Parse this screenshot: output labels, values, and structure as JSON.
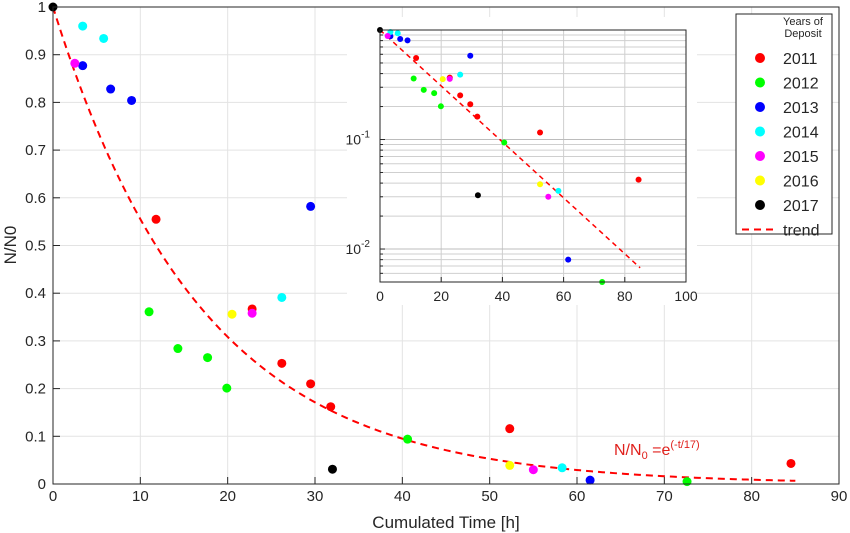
{
  "chart_data": {
    "type": "scatter",
    "xlabel": "Cumulated Time [h]",
    "ylabel": "N/N0",
    "xlim": [
      0,
      90
    ],
    "ylim": [
      0,
      1
    ],
    "x_ticks": [
      "0",
      "10",
      "20",
      "30",
      "40",
      "50",
      "60",
      "70",
      "80",
      "90"
    ],
    "y_ticks": [
      "0",
      "0.1",
      "0.2",
      "0.3",
      "0.4",
      "0.5",
      "0.6",
      "0.7",
      "0.8",
      "0.9",
      "1"
    ],
    "grid": true,
    "legend": {
      "title_line1": "Years of",
      "title_line2": "Deposit",
      "placement": "top-right"
    },
    "series": [
      {
        "name": "2011",
        "color": "#ff0000",
        "points": [
          [
            11.8,
            0.555
          ],
          [
            22.8,
            0.367
          ],
          [
            26.2,
            0.253
          ],
          [
            29.5,
            0.21
          ],
          [
            31.8,
            0.162
          ],
          [
            52.3,
            0.116
          ],
          [
            84.5,
            0.043
          ]
        ]
      },
      {
        "name": "2012",
        "color": "#00ff00",
        "points": [
          [
            11.0,
            0.361
          ],
          [
            14.3,
            0.284
          ],
          [
            17.7,
            0.265
          ],
          [
            19.9,
            0.201
          ],
          [
            40.6,
            0.094
          ],
          [
            72.6,
            0.005
          ]
        ]
      },
      {
        "name": "2013",
        "color": "#0000ff",
        "points": [
          [
            3.4,
            0.877
          ],
          [
            6.6,
            0.828
          ],
          [
            9.0,
            0.804
          ],
          [
            29.5,
            0.582
          ],
          [
            61.5,
            0.008
          ]
        ]
      },
      {
        "name": "2014",
        "color": "#00ffff",
        "points": [
          [
            3.4,
            0.96
          ],
          [
            5.8,
            0.934
          ],
          [
            26.2,
            0.391
          ],
          [
            58.3,
            0.034
          ]
        ]
      },
      {
        "name": "2015",
        "color": "#ff00ff",
        "points": [
          [
            2.5,
            0.882
          ],
          [
            22.8,
            0.358
          ],
          [
            55.0,
            0.03
          ]
        ]
      },
      {
        "name": "2016",
        "color": "#ffff00",
        "points": [
          [
            20.5,
            0.356
          ],
          [
            52.3,
            0.039
          ]
        ]
      },
      {
        "name": "2017",
        "color": "#000000",
        "points": [
          [
            0.0,
            1.0
          ],
          [
            32.0,
            0.031
          ]
        ]
      }
    ],
    "trend": {
      "name": "trend",
      "color": "#ff0000",
      "style": "dashed",
      "tau": 17,
      "x_range": [
        0,
        85
      ],
      "equation_parts": {
        "lhs": "N/N",
        "lhs_sub": "0",
        "eq": " =e",
        "exp": "(-t/17)"
      }
    },
    "inset": {
      "xlim": [
        0,
        100
      ],
      "ylim": [
        0.005,
        1
      ],
      "y_scale": "log",
      "x_ticks": [
        "0",
        "20",
        "40",
        "60",
        "80",
        "100"
      ],
      "y_ticks": [
        {
          "mant": "10",
          "exp": "-1",
          "value": 0.1
        },
        {
          "mant": "10",
          "exp": "-2",
          "value": 0.01
        }
      ],
      "trend_x_range": [
        0,
        85
      ],
      "grid": true
    }
  }
}
